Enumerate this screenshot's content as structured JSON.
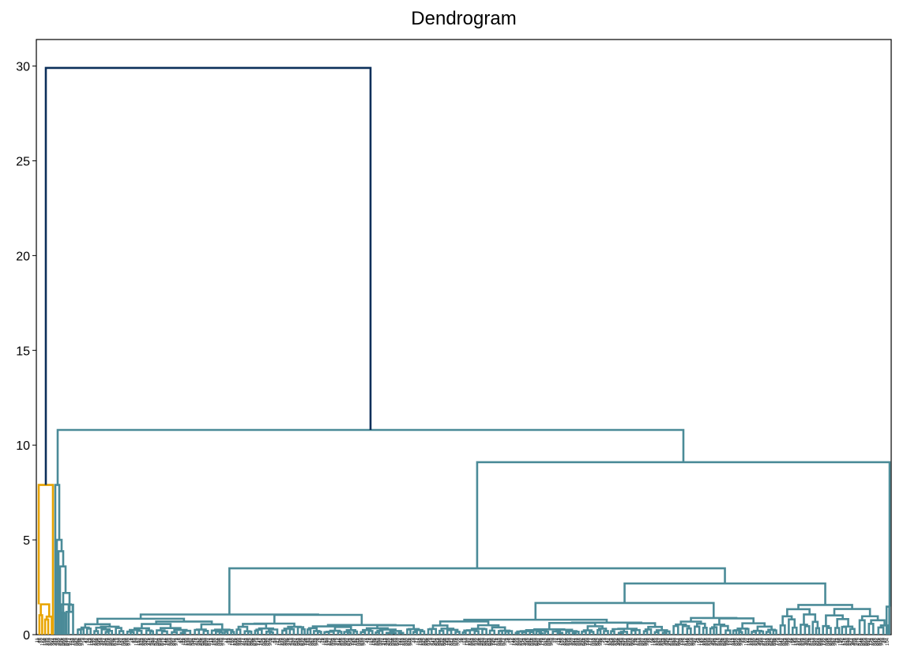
{
  "chart_data": {
    "type": "dendrogram",
    "title": "Dendrogram",
    "xlabel": "",
    "ylabel": "",
    "ylim": [
      0,
      31.4
    ],
    "yticks": [
      0,
      5,
      10,
      15,
      20,
      25,
      30
    ],
    "grid": false,
    "colors": {
      "root": "#0b2f5a",
      "cluster_a": "#e8a400",
      "cluster_b": "#4b8b98"
    },
    "merge_heights": {
      "root": 29.9,
      "cluster_a_top": 7.9,
      "cluster_b_top": 10.8,
      "right_group": 9.1,
      "middle_group": 3.5,
      "far_right_group": 2.7
    }
  }
}
